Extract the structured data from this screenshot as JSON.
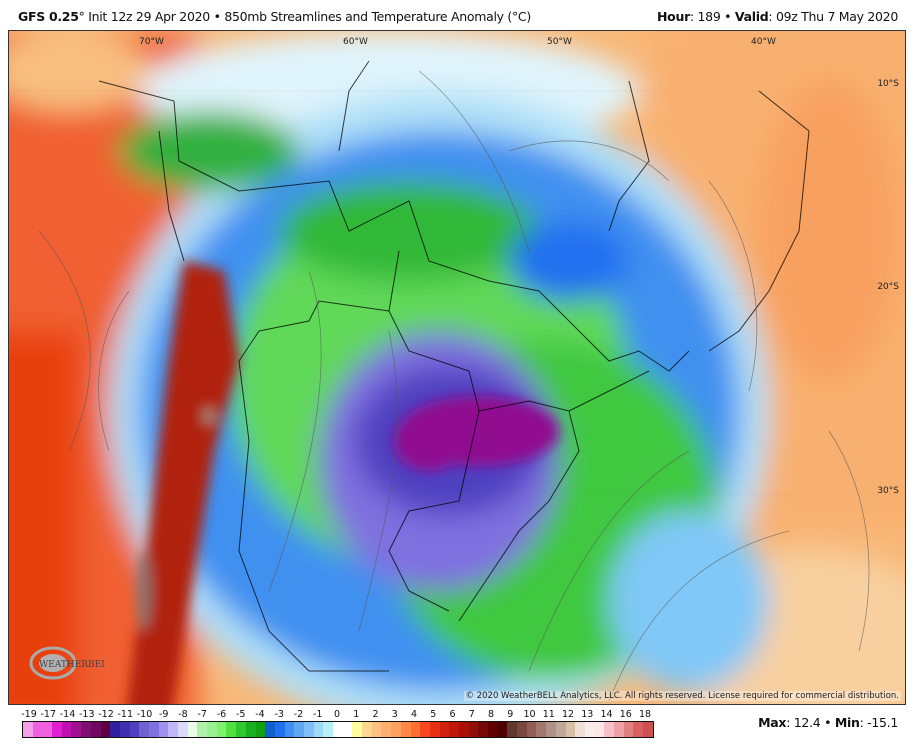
{
  "header": {
    "model": "GFS 0.25",
    "degree": "°",
    "run": " Init 12z 29 Apr 2020 • 850mb Streamlines and Temperature Anomaly (°C)",
    "hour_label": "Hour",
    "hour_value": ": 189 • ",
    "valid_label": "Valid",
    "valid_value": ": 09z Thu 7 May 2020"
  },
  "map": {
    "longitudes": [
      "70°W",
      "60°W",
      "50°W",
      "40°W"
    ],
    "latitudes": [
      "10°S",
      "20°S",
      "30°S"
    ],
    "copyright": "© 2020 WeatherBELL Analytics, LLC. All rights reserved. License required for commercial distribution.",
    "logo_text": "WeatherBELL"
  },
  "legend": {
    "tick_labels": [
      "-19",
      "-17",
      "-14",
      "-13",
      "-12",
      "-11",
      "-10",
      "-9",
      "-8",
      "-7",
      "-6",
      "-5",
      "-4",
      "-3",
      "-2",
      "-1",
      "0",
      "1",
      "2",
      "3",
      "4",
      "5",
      "6",
      "7",
      "8",
      "9",
      "10",
      "11",
      "12",
      "13",
      "14",
      "16",
      "18"
    ],
    "colors": [
      "#f4a0e8",
      "#f060e0",
      "#f060e0",
      "#e020d0",
      "#c010b0",
      "#a01090",
      "#801070",
      "#700860",
      "#600040",
      "#3020a0",
      "#4030b0",
      "#5040c0",
      "#7060d0",
      "#8070e0",
      "#a090f0",
      "#c0b8f8",
      "#dcd8f8",
      "#e8fce8",
      "#b0f0a8",
      "#98f090",
      "#80f070",
      "#50e040",
      "#30c830",
      "#18b020",
      "#10a010",
      "#1060d0",
      "#2070f0",
      "#4090f0",
      "#60a8f0",
      "#80c0f8",
      "#a0d8f8",
      "#b8f0f8",
      "#ffffff",
      "#ffffff",
      "#ffffa0",
      "#ffd890",
      "#ffc080",
      "#ffb070",
      "#ffa060",
      "#ff8848",
      "#ff7030",
      "#f84820",
      "#e83010",
      "#d02010",
      "#c01808",
      "#a81008",
      "#901008",
      "#780808",
      "#600000",
      "#500000",
      "#603830",
      "#784840",
      "#906058",
      "#a07870",
      "#b09088",
      "#c0a898",
      "#d8c0a8",
      "#f0e0d8",
      "#f8ecec",
      "#fde8e8",
      "#f8c0c8",
      "#f0a0a8",
      "#e08080",
      "#d86060",
      "#d05050"
    ],
    "max_label": "Max",
    "max_value": ": 12.4 • ",
    "min_label": "Min",
    "min_value": ": -15.1"
  }
}
